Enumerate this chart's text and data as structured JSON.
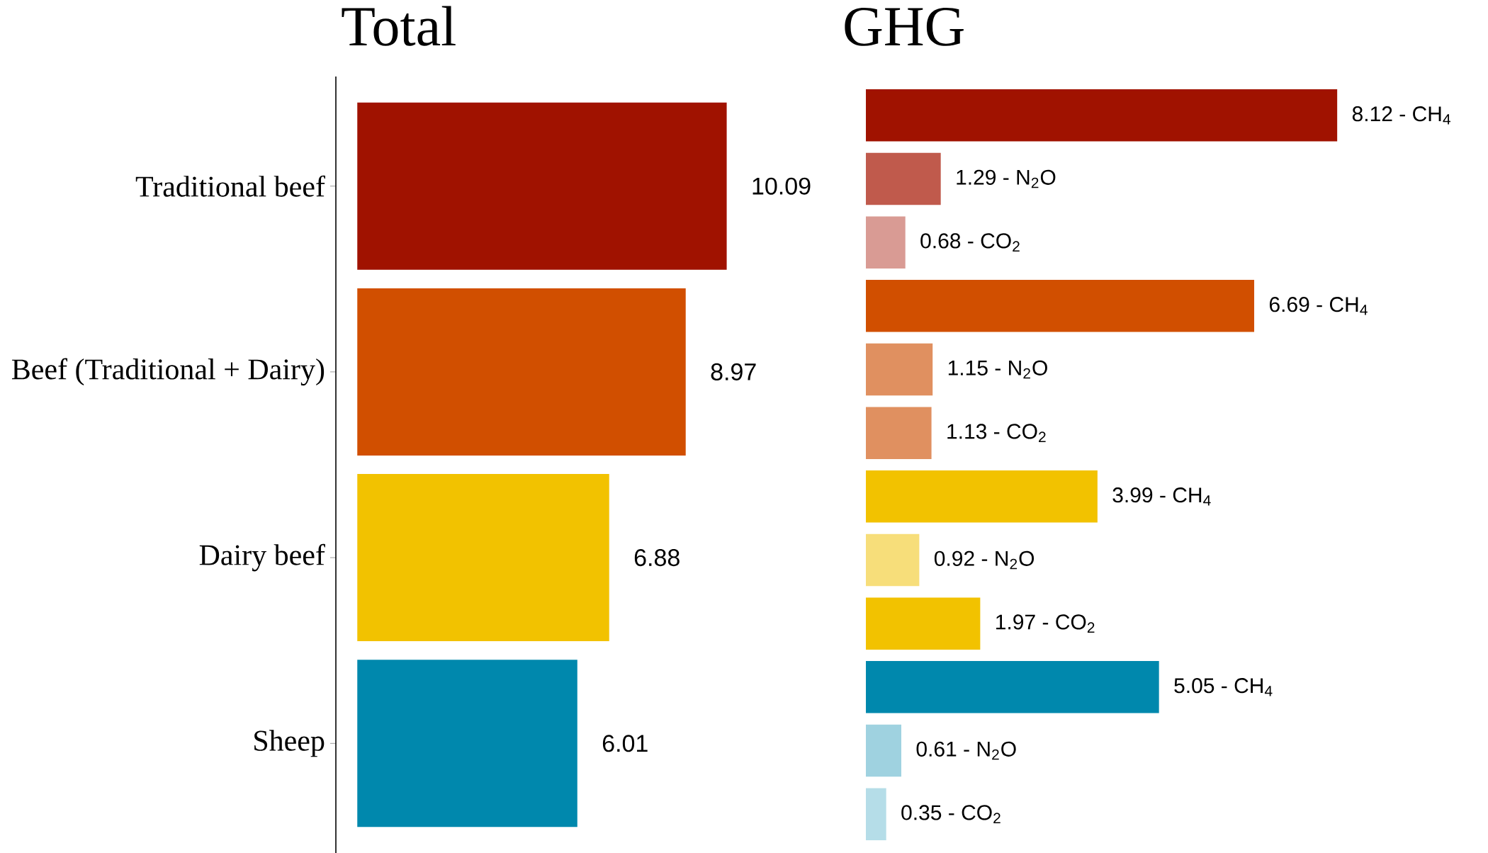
{
  "chart_data": [
    {
      "type": "bar",
      "orientation": "horizontal",
      "title": "Total",
      "categories": [
        "Traditional beef",
        "Beef (Traditional + Dairy)",
        "Dairy beef",
        "Sheep"
      ],
      "values": [
        10.09,
        8.97,
        6.88,
        6.01
      ],
      "colors": [
        "#a01200",
        "#d14f00",
        "#f2c200",
        "#0088ad"
      ],
      "data_labels": true,
      "tick_labels": "y"
    },
    {
      "type": "bar",
      "orientation": "horizontal",
      "title": "GHG",
      "categories": [
        null,
        null,
        null,
        null,
        null,
        null,
        null,
        null,
        null,
        null,
        null,
        null
      ],
      "values": [
        8.12,
        1.29,
        0.68,
        6.69,
        1.15,
        1.13,
        3.99,
        0.92,
        1.97,
        5.05,
        0.61,
        0.35
      ],
      "colors": [
        "#a01200",
        "#c05a4c",
        "#d99b94",
        "#d14f00",
        "#e09060",
        "#e09060",
        "#f2c200",
        "#f7de7a",
        "#f2c200",
        "#0088ad",
        "#9fd2e0",
        "#b5dde8"
      ],
      "value_labels": [
        "8.12 -  CH$_{4}$",
        "1.29 -  N$_{2}$O",
        "0.68 -  CO$_{2}$",
        "6.69 -  CH$_{4}$",
        "1.15 -  N$_{2}$O",
        "1.13 -  CO$_{2}$",
        "3.99 -  CH$_{4}$",
        "0.92 -  N$_{2}$O",
        "1.97 -  CO$_{2}$",
        "5.05 -  CH$_{4}$",
        "0.61 -  N$_{2}$O",
        "0.35 -  CO$_{2}$"
      ],
      "tick_labels": false
    }
  ]
}
